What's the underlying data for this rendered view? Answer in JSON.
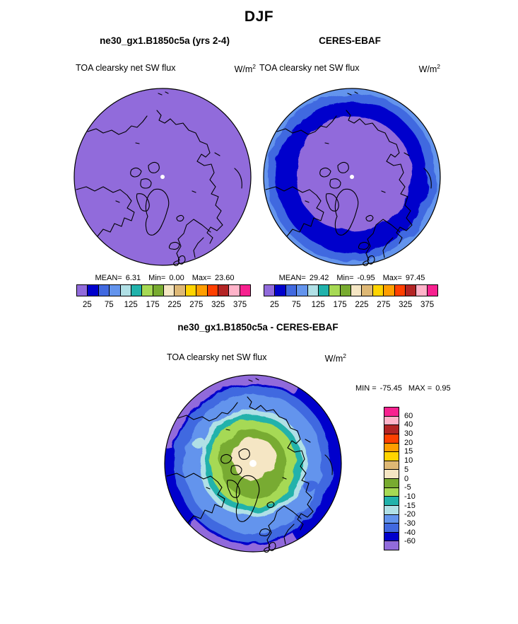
{
  "page_title": "DJF",
  "palette": [
    "#916BDB",
    "#0000CC",
    "#4169E0",
    "#6394ED",
    "#B0E0E6",
    "#21B2AB",
    "#A6D954",
    "#78AB30",
    "#F5E6C4",
    "#DEB875",
    "#FFD400",
    "#FF9E00",
    "#FF4000",
    "#B32424",
    "#FFB3C9",
    "#F7218F"
  ],
  "colorbar_ticks": [
    "25",
    "75",
    "125",
    "175",
    "225",
    "275",
    "325",
    "375"
  ],
  "diff_scale": {
    "colors": [
      "#F7218F",
      "#FFB3C9",
      "#B32424",
      "#FF4000",
      "#FF9E00",
      "#FFD400",
      "#DEB875",
      "#F5E6C4",
      "#78AB30",
      "#A6D954",
      "#21B2AB",
      "#B0E0E6",
      "#6394ED",
      "#4169E0",
      "#0000CC",
      "#916BDB"
    ],
    "labels": [
      "60",
      "40",
      "30",
      "20",
      "15",
      "10",
      "5",
      "0",
      "-5",
      "-10",
      "-15",
      "-20",
      "-30",
      "-40",
      "-60"
    ]
  },
  "panels": {
    "model": {
      "title": "ne30_gx1.B1850c5a (yrs 2-4)",
      "field": "TOA clearsky net SW flux",
      "units_base": "W/m",
      "units_exp": "2",
      "stats": {
        "mean_label": "MEAN=",
        "mean": "6.31",
        "min_label": "Min=",
        "min": "0.00",
        "max_label": "Max=",
        "max": "23.60"
      }
    },
    "obs": {
      "title": "CERES-EBAF",
      "field": "TOA clearsky net SW flux",
      "units_base": "W/m",
      "units_exp": "2",
      "stats": {
        "mean_label": "MEAN=",
        "mean": "29.42",
        "min_label": "Min=",
        "min": "-0.95",
        "max_label": "Max=",
        "max": "97.45"
      }
    },
    "diff": {
      "title": "ne30_gx1.B1850c5a - CERES-EBAF",
      "field": "TOA clearsky net SW flux",
      "units_base": "W/m",
      "units_exp": "2",
      "stats": {
        "min_label": "MIN =",
        "min": "-75.45",
        "max_label": "MAX =",
        "max": "0.95"
      }
    }
  },
  "chart_data": [
    {
      "type": "heatmap",
      "panel": "model",
      "title": "ne30_gx1.B1850c5a (yrs 2-4)",
      "season": "DJF",
      "variable": "TOA clearsky net SW flux",
      "units": "W/m2",
      "projection": "north polar stereographic",
      "mean": 6.31,
      "min": 0.0,
      "max": 23.6,
      "contour_levels": [
        25,
        50,
        75,
        100,
        125,
        150,
        175,
        200,
        225,
        250,
        275,
        300,
        325,
        350,
        375
      ],
      "tick_labels": [
        25,
        75,
        125,
        175,
        225,
        275,
        325,
        375
      ],
      "field_summary": "entire polar cap in lowest bin (<25 W/m2, mediumpurple) with Arctic coastlines overlaid"
    },
    {
      "type": "heatmap",
      "panel": "obs",
      "title": "CERES-EBAF",
      "season": "DJF",
      "variable": "TOA clearsky net SW flux",
      "units": "W/m2",
      "projection": "north polar stereographic",
      "mean": 29.42,
      "min": -0.95,
      "max": 97.45,
      "contour_levels": [
        25,
        50,
        75,
        100,
        125,
        150,
        175,
        200,
        225,
        250,
        275,
        300,
        325,
        350,
        375
      ],
      "tick_labels": [
        25,
        75,
        125,
        175,
        225,
        275,
        325,
        375
      ],
      "field_summary": "<25 W/m2 (purple) over central Arctic, concentric bands 25-50 (mediumblue), 50-75 (royalblue) and 75-100 (cornflower) toward the map edge"
    },
    {
      "type": "heatmap",
      "panel": "diff",
      "title": "ne30_gx1.B1850c5a - CERES-EBAF",
      "season": "DJF",
      "variable": "TOA clearsky net SW flux",
      "units": "W/m2",
      "projection": "north polar stereographic",
      "min": -75.45,
      "max": 0.95,
      "contour_levels": [
        -60,
        -40,
        -30,
        -20,
        -15,
        -10,
        -5,
        0,
        5,
        10,
        15,
        20,
        30,
        40,
        60
      ],
      "field_summary": "near 0 at the pole (cream), decreasing outward through -5..-10 (greens), -15..-20 (teal/pale cyan), -30..-40 (blues) to about -60 (dark blue / purple rim) at the map edge"
    }
  ]
}
